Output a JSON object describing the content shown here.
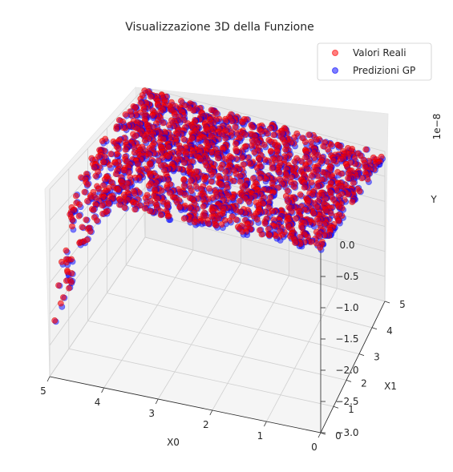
{
  "chart_data": {
    "type": "scatter",
    "projection": "3d",
    "title": "Visualizzazione 3D della Funzione",
    "xlabel": "X0",
    "ylabel": "X1",
    "zlabel": "Y",
    "z_offset_label": "1e−8",
    "xlim": [
      0,
      5
    ],
    "ylim": [
      0,
      5
    ],
    "zlim": [
      -3.0,
      0.0
    ],
    "x_ticks": [
      "0",
      "1",
      "2",
      "3",
      "4",
      "5"
    ],
    "y_ticks": [
      "0",
      "1",
      "2",
      "3",
      "4",
      "5"
    ],
    "z_ticks": [
      "0.0",
      "−0.5",
      "−1.0",
      "−1.5",
      "−2.0",
      "−2.5",
      "−3.0"
    ],
    "grid": true,
    "legend": {
      "placement": "top-right",
      "entries": [
        "Valori Reali",
        "Predizioni GP"
      ]
    },
    "series": [
      {
        "name": "Valori Reali",
        "color": "#ff0000",
        "alpha": 0.5
      },
      {
        "name": "Predizioni GP",
        "color": "#0000ff",
        "alpha": 0.5
      }
    ]
  }
}
